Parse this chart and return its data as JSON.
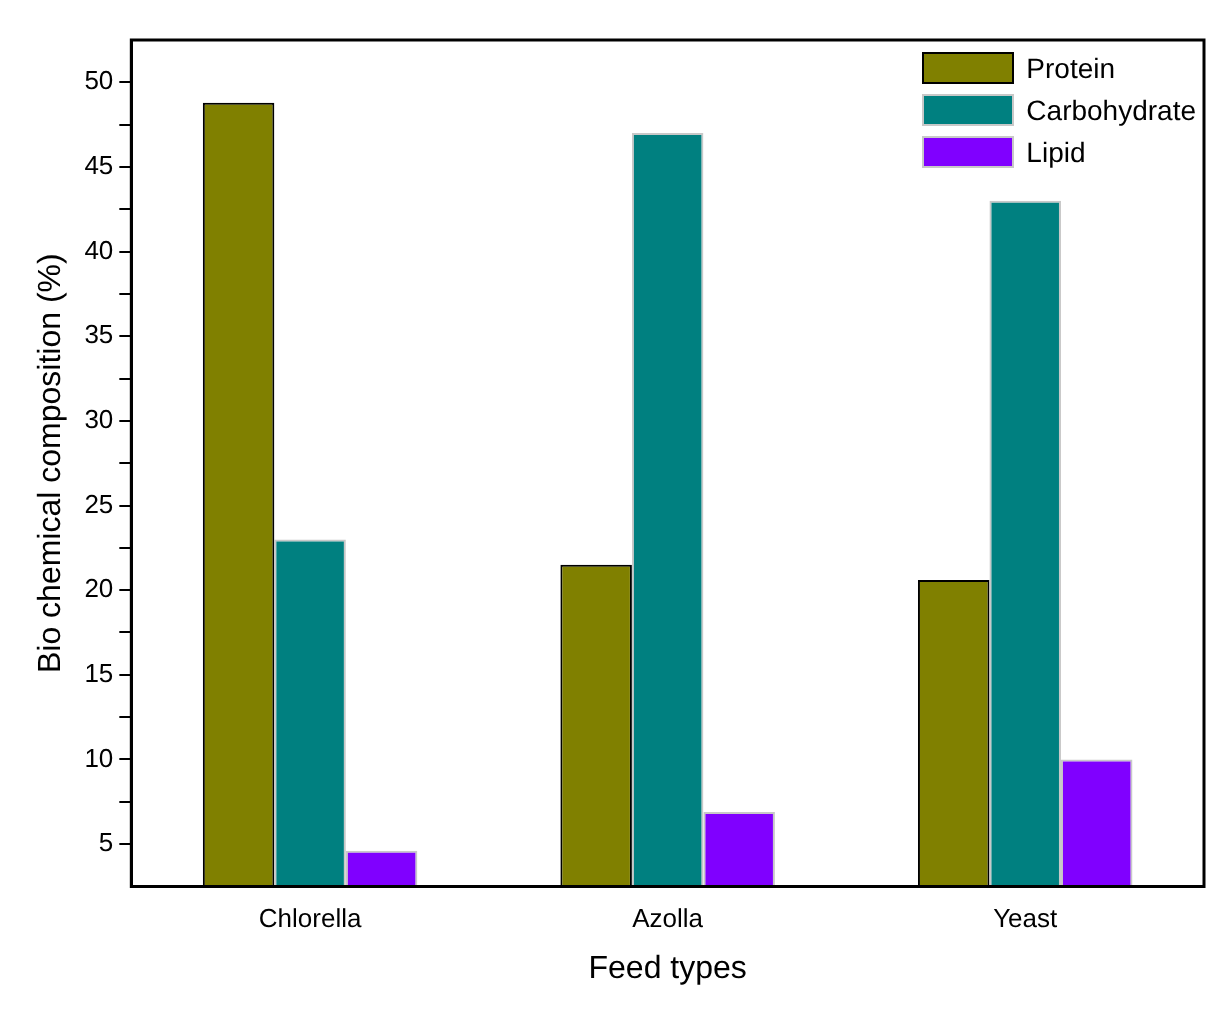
{
  "chart_data": {
    "type": "bar",
    "xlabel": "Feed types",
    "ylabel": "Bio chemical composition (%)",
    "categories": [
      "Chlorella",
      "Azolla",
      "Yeast"
    ],
    "series": [
      {
        "name": "Protein",
        "color": "#808000",
        "values": [
          48.8,
          21.5,
          20.6
        ]
      },
      {
        "name": "Carbohydrate",
        "color": "#008080",
        "values": [
          23.0,
          47.0,
          43.0
        ]
      },
      {
        "name": "Lipid",
        "color": "#8000ff",
        "values": [
          4.6,
          6.9,
          10.0
        ]
      }
    ],
    "ylim": [
      2.5,
      52.5
    ],
    "yticks": [
      5,
      {
        "value": 7.5,
        "label": null
      },
      10,
      {
        "value": 12.5,
        "label": null
      },
      15,
      {
        "value": 17.5,
        "label": null
      },
      20,
      {
        "value": 22.5,
        "label": null
      },
      25,
      {
        "value": 27.5,
        "label": null
      },
      30,
      {
        "value": 32.5,
        "label": null
      },
      35,
      {
        "value": 37.5,
        "label": null
      },
      40,
      {
        "value": 42.5,
        "label": null
      },
      45,
      {
        "value": 47.5,
        "label": null
      },
      50
    ],
    "grid": false,
    "legend": "top right"
  }
}
